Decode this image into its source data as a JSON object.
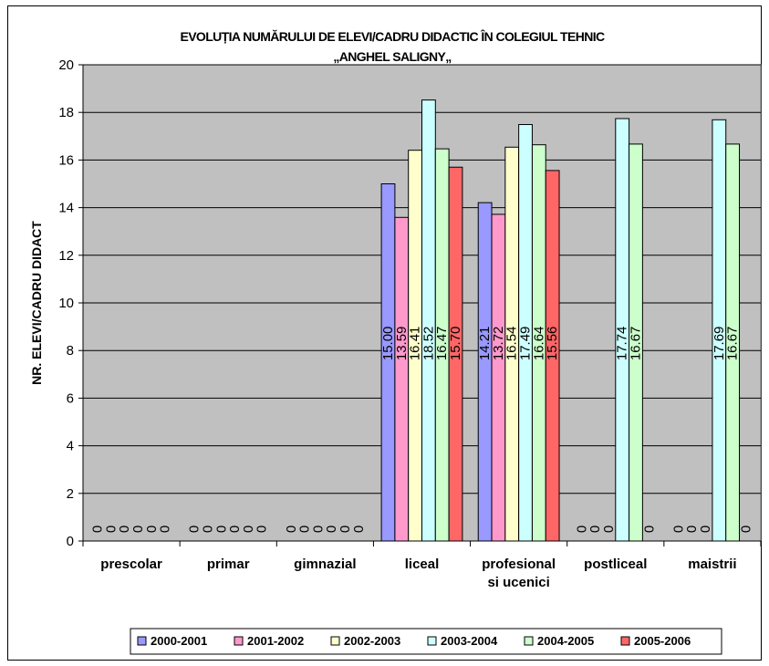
{
  "chart_data": {
    "type": "bar",
    "title_lines": [
      "EVOLUȚIA NUMĂRULUI DE ELEVI/CADRU DIDACTIC ÎN COLEGIUL TEHNIC",
      "„ANGHEL SALIGNY„"
    ],
    "ylabel": "NR. ELEVI/CADRU DIDACT",
    "xlabel": "",
    "ylim": [
      0,
      20
    ],
    "yticks": [
      0,
      2,
      4,
      6,
      8,
      10,
      12,
      14,
      16,
      18,
      20
    ],
    "ytick_labels": [
      "0",
      "2",
      "4",
      "6",
      "8",
      "10",
      "12",
      "14",
      "16",
      "18",
      "20"
    ],
    "grid": true,
    "legend_position": "bottom",
    "categories": [
      [
        "prescolar"
      ],
      [
        "primar"
      ],
      [
        "gimnazial"
      ],
      [
        "liceal"
      ],
      [
        "profesional",
        "si ucenici"
      ],
      [
        "postliceal"
      ],
      [
        "maistrii"
      ]
    ],
    "series": [
      {
        "name": "2000-2001",
        "color": "#9999ff",
        "values": [
          0,
          0,
          0,
          15.0,
          14.21,
          0,
          0
        ],
        "labels": [
          "0",
          "0",
          "0",
          "15.00",
          "14.21",
          "0",
          "0"
        ]
      },
      {
        "name": "2001-2002",
        "color": "#ff99cc",
        "values": [
          0,
          0,
          0,
          13.59,
          13.72,
          0,
          0
        ],
        "labels": [
          "0",
          "0",
          "0",
          "13.59",
          "13.72",
          "0",
          "0"
        ]
      },
      {
        "name": "2002-2003",
        "color": "#ffffcc",
        "values": [
          0,
          0,
          0,
          16.41,
          16.54,
          0,
          0
        ],
        "labels": [
          "0",
          "0",
          "0",
          "16.41",
          "16.54",
          "0",
          "0"
        ]
      },
      {
        "name": "2003-2004",
        "color": "#ccffff",
        "values": [
          0,
          0,
          0,
          18.52,
          17.49,
          17.74,
          17.69
        ],
        "labels": [
          "0",
          "0",
          "0",
          "18.52",
          "17.49",
          "17.74",
          "17.69"
        ]
      },
      {
        "name": "2004-2005",
        "color": "#ccffcc",
        "values": [
          0,
          0,
          0,
          16.47,
          16.64,
          16.67,
          16.67
        ],
        "labels": [
          "0",
          "0",
          "0",
          "16.47",
          "16.64",
          "16.67",
          "16.67"
        ]
      },
      {
        "name": "2005-2006",
        "color": "#ff6666",
        "values": [
          0,
          0,
          0,
          15.7,
          15.56,
          0,
          0
        ],
        "labels": [
          "0",
          "0",
          "0",
          "15.70",
          "15.56",
          "0",
          "0"
        ]
      }
    ],
    "colors": {
      "plot_background": "#c0c0c0",
      "gridline": "#000000"
    }
  }
}
